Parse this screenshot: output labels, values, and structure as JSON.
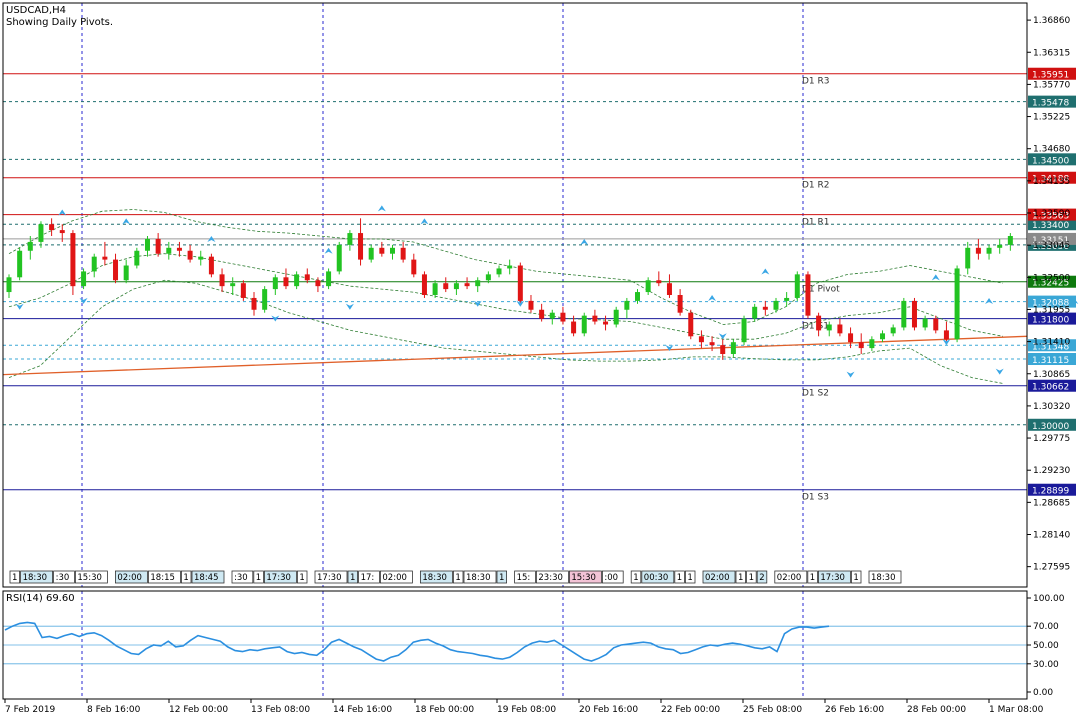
{
  "header": {
    "symbol": "USDCAD,H4",
    "subtitle": "Showing Daily Pivots."
  },
  "chart_data": {
    "type": "candlestick",
    "y_range": [
      1.2725,
      1.3715
    ],
    "price_ticks": [
      "1.36860",
      "1.36315",
      "1.35770",
      "1.35225",
      "1.34680",
      "1.34135",
      "1.33590",
      "1.33045",
      "1.32500",
      "1.31955",
      "1.31410",
      "1.30865",
      "1.30320",
      "1.29775",
      "1.29230",
      "1.28685",
      "1.28140",
      "1.27595"
    ],
    "pivot_levels": [
      {
        "name": "D1 R3",
        "value": 1.35951,
        "label": "1.35951",
        "color": "#d01010"
      },
      {
        "name": "D1 R2",
        "value": 1.34188,
        "label": "1.34188",
        "color": "#d01010"
      },
      {
        "name": "D1 R1",
        "value": 1.33563,
        "label": "1.33563",
        "color": "#d01010"
      },
      {
        "name": "D1 Pivot",
        "value": 1.32425,
        "label": "1.32425",
        "color": "#0e7a0e"
      },
      {
        "name": "D1 S1",
        "value": 1.318,
        "label": "1.31800",
        "color": "#1a1a9a"
      },
      {
        "name": "D1 S2",
        "value": 1.30662,
        "label": "1.30662",
        "color": "#1a1a9a"
      },
      {
        "name": "D1 S3",
        "value": 1.28899,
        "label": "1.28899",
        "color": "#1a1a9a"
      }
    ],
    "horizontal_levels": [
      {
        "value": 1.35478,
        "label": "1.35478",
        "color": "#1f6f6f"
      },
      {
        "value": 1.345,
        "label": "1.34500",
        "color": "#1f6f6f"
      },
      {
        "value": 1.334,
        "label": "1.33400",
        "color": "#1f6f6f"
      },
      {
        "value": 1.3305,
        "label": "1.33050",
        "color": "#1f6f6f"
      },
      {
        "value": 1.32088,
        "label": "1.32088",
        "color": "#3aa7d6"
      },
      {
        "value": 1.31348,
        "label": "1.31348",
        "color": "#3aa7d6"
      },
      {
        "value": 1.31115,
        "label": "1.31115",
        "color": "#3aa7d6"
      },
      {
        "value": 1.3,
        "label": "1.30000",
        "color": "#1f6f6f"
      }
    ],
    "current_price": {
      "value": 1.33151,
      "label": "1.33151"
    },
    "x_labels": [
      "7 Feb 2019",
      "8 Feb 16:00",
      "12 Feb 00:00",
      "13 Feb 08:00",
      "14 Feb 16:00",
      "18 Feb 00:00",
      "19 Feb 08:00",
      "20 Feb 16:00",
      "22 Feb 00:00",
      "25 Feb 08:00",
      "26 Feb 16:00",
      "28 Feb 00:00",
      "1 Mar 08:00"
    ],
    "candles": [
      [
        1.3225,
        1.3255,
        1.3215,
        1.325
      ],
      [
        1.325,
        1.33,
        1.3245,
        1.3295
      ],
      [
        1.3295,
        1.332,
        1.328,
        1.331
      ],
      [
        1.331,
        1.3345,
        1.33,
        1.334
      ],
      [
        1.334,
        1.335,
        1.332,
        1.333
      ],
      [
        1.333,
        1.334,
        1.331,
        1.3325
      ],
      [
        1.3325,
        1.333,
        1.322,
        1.3235
      ],
      [
        1.3235,
        1.3265,
        1.323,
        1.326
      ],
      [
        1.326,
        1.329,
        1.325,
        1.3285
      ],
      [
        1.3285,
        1.331,
        1.327,
        1.328
      ],
      [
        1.328,
        1.329,
        1.324,
        1.3245
      ],
      [
        1.3245,
        1.328,
        1.324,
        1.327
      ],
      [
        1.327,
        1.33,
        1.3265,
        1.3295
      ],
      [
        1.3295,
        1.332,
        1.3285,
        1.3315
      ],
      [
        1.3315,
        1.3325,
        1.3285,
        1.329
      ],
      [
        1.329,
        1.331,
        1.328,
        1.33
      ],
      [
        1.33,
        1.331,
        1.3285,
        1.3295
      ],
      [
        1.3295,
        1.3305,
        1.3275,
        1.328
      ],
      [
        1.328,
        1.3295,
        1.327,
        1.3285
      ],
      [
        1.3285,
        1.329,
        1.325,
        1.3255
      ],
      [
        1.3255,
        1.3265,
        1.3225,
        1.3235
      ],
      [
        1.3235,
        1.325,
        1.322,
        1.324
      ],
      [
        1.324,
        1.3245,
        1.321,
        1.3215
      ],
      [
        1.3215,
        1.3225,
        1.3185,
        1.3195
      ],
      [
        1.3195,
        1.3235,
        1.319,
        1.323
      ],
      [
        1.323,
        1.3255,
        1.322,
        1.325
      ],
      [
        1.325,
        1.3265,
        1.323,
        1.3235
      ],
      [
        1.3235,
        1.326,
        1.323,
        1.3255
      ],
      [
        1.3255,
        1.3265,
        1.324,
        1.3245
      ],
      [
        1.3245,
        1.325,
        1.3225,
        1.3235
      ],
      [
        1.3235,
        1.3265,
        1.323,
        1.326
      ],
      [
        1.326,
        1.331,
        1.3255,
        1.3305
      ],
      [
        1.3305,
        1.333,
        1.3295,
        1.3325
      ],
      [
        1.3325,
        1.335,
        1.327,
        1.328
      ],
      [
        1.328,
        1.3305,
        1.3275,
        1.33
      ],
      [
        1.33,
        1.331,
        1.3285,
        1.329
      ],
      [
        1.329,
        1.3305,
        1.328,
        1.33
      ],
      [
        1.33,
        1.331,
        1.3275,
        1.328
      ],
      [
        1.328,
        1.329,
        1.325,
        1.3255
      ],
      [
        1.3255,
        1.326,
        1.3215,
        1.322
      ],
      [
        1.322,
        1.3245,
        1.3215,
        1.324
      ],
      [
        1.324,
        1.325,
        1.3225,
        1.323
      ],
      [
        1.323,
        1.3245,
        1.322,
        1.324
      ],
      [
        1.324,
        1.325,
        1.323,
        1.3235
      ],
      [
        1.3235,
        1.325,
        1.3225,
        1.3245
      ],
      [
        1.3245,
        1.326,
        1.324,
        1.3255
      ],
      [
        1.3255,
        1.327,
        1.325,
        1.3265
      ],
      [
        1.3265,
        1.328,
        1.3255,
        1.327
      ],
      [
        1.327,
        1.3275,
        1.3205,
        1.321
      ],
      [
        1.321,
        1.322,
        1.319,
        1.3195
      ],
      [
        1.3195,
        1.3205,
        1.3175,
        1.318
      ],
      [
        1.318,
        1.3195,
        1.317,
        1.319
      ],
      [
        1.319,
        1.32,
        1.317,
        1.3175
      ],
      [
        1.3175,
        1.3185,
        1.315,
        1.3155
      ],
      [
        1.3155,
        1.319,
        1.315,
        1.3185
      ],
      [
        1.3185,
        1.3195,
        1.317,
        1.3175
      ],
      [
        1.3175,
        1.3185,
        1.316,
        1.317
      ],
      [
        1.317,
        1.32,
        1.3165,
        1.3195
      ],
      [
        1.3195,
        1.3215,
        1.318,
        1.321
      ],
      [
        1.321,
        1.323,
        1.3205,
        1.3225
      ],
      [
        1.3225,
        1.325,
        1.322,
        1.3245
      ],
      [
        1.3245,
        1.326,
        1.3235,
        1.324
      ],
      [
        1.324,
        1.3255,
        1.3215,
        1.322
      ],
      [
        1.322,
        1.323,
        1.3185,
        1.319
      ],
      [
        1.319,
        1.3195,
        1.3145,
        1.315
      ],
      [
        1.315,
        1.316,
        1.313,
        1.314
      ],
      [
        1.314,
        1.315,
        1.3125,
        1.3135
      ],
      [
        1.3135,
        1.3145,
        1.311,
        1.312
      ],
      [
        1.312,
        1.3145,
        1.3115,
        1.314
      ],
      [
        1.314,
        1.3185,
        1.3135,
        1.318
      ],
      [
        1.318,
        1.3205,
        1.3175,
        1.32
      ],
      [
        1.32,
        1.321,
        1.3185,
        1.3195
      ],
      [
        1.3195,
        1.3215,
        1.319,
        1.321
      ],
      [
        1.321,
        1.3225,
        1.32,
        1.3215
      ],
      [
        1.3215,
        1.326,
        1.321,
        1.3255
      ],
      [
        1.3255,
        1.326,
        1.318,
        1.3185
      ],
      [
        1.3185,
        1.319,
        1.315,
        1.316
      ],
      [
        1.316,
        1.3175,
        1.315,
        1.317
      ],
      [
        1.317,
        1.318,
        1.315,
        1.3155
      ],
      [
        1.3155,
        1.3165,
        1.313,
        1.314
      ],
      [
        1.314,
        1.3155,
        1.312,
        1.313
      ],
      [
        1.313,
        1.315,
        1.3125,
        1.3145
      ],
      [
        1.3145,
        1.316,
        1.314,
        1.3155
      ],
      [
        1.3155,
        1.317,
        1.315,
        1.3165
      ],
      [
        1.3165,
        1.3215,
        1.316,
        1.321
      ],
      [
        1.321,
        1.3215,
        1.316,
        1.3165
      ],
      [
        1.3165,
        1.3185,
        1.316,
        1.318
      ],
      [
        1.318,
        1.3185,
        1.3155,
        1.316
      ],
      [
        1.316,
        1.3175,
        1.314,
        1.3145
      ],
      [
        1.3145,
        1.327,
        1.314,
        1.3265
      ],
      [
        1.3265,
        1.331,
        1.3255,
        1.33
      ],
      [
        1.33,
        1.3315,
        1.328,
        1.329
      ],
      [
        1.329,
        1.3305,
        1.328,
        1.33
      ],
      [
        1.33,
        1.3315,
        1.329,
        1.3305
      ],
      [
        1.3305,
        1.3325,
        1.3295,
        1.332
      ]
    ],
    "trendline": {
      "start": 1.3085,
      "end": 1.315,
      "color": "#e0602a"
    },
    "envelope": {
      "upper": [
        1.329,
        1.332,
        1.3345,
        1.3362,
        1.3365,
        1.336,
        1.3345,
        1.3335,
        1.3328,
        1.3325,
        1.332,
        1.3315,
        1.3315,
        1.331,
        1.3295,
        1.328,
        1.327,
        1.326,
        1.3255,
        1.325,
        1.3245,
        1.3215,
        1.319,
        1.317,
        1.3175,
        1.32,
        1.324,
        1.3255,
        1.326,
        1.327,
        1.326,
        1.325,
        1.324
      ],
      "lower": [
        1.308,
        1.31,
        1.315,
        1.32,
        1.323,
        1.3245,
        1.324,
        1.3225,
        1.321,
        1.319,
        1.3175,
        1.316,
        1.315,
        1.314,
        1.313,
        1.3125,
        1.312,
        1.3115,
        1.311,
        1.3108,
        1.3108,
        1.311,
        1.3115,
        1.3115,
        1.3112,
        1.311,
        1.311,
        1.3115,
        1.3125,
        1.313,
        1.31,
        1.308,
        1.307
      ],
      "mid": [
        1.32,
        1.3215,
        1.324,
        1.327,
        1.3285,
        1.329,
        1.3285,
        1.3275,
        1.3265,
        1.3255,
        1.3245,
        1.3235,
        1.323,
        1.3225,
        1.3215,
        1.3205,
        1.3195,
        1.3188,
        1.318,
        1.3178,
        1.3175,
        1.3165,
        1.3155,
        1.3145,
        1.3145,
        1.3155,
        1.3175,
        1.3185,
        1.319,
        1.32,
        1.318,
        1.316,
        1.315
      ]
    },
    "fractals_up": [
      [
        5,
        1.3365
      ],
      [
        11,
        1.335
      ],
      [
        19,
        1.332
      ],
      [
        30,
        1.33
      ],
      [
        35,
        1.3372
      ],
      [
        39,
        1.335
      ],
      [
        54,
        1.3315
      ],
      [
        66,
        1.322
      ],
      [
        71,
        1.3265
      ],
      [
        87,
        1.3255
      ],
      [
        92,
        1.3215
      ],
      [
        100,
        1.3215
      ],
      [
        108,
        1.3345
      ],
      [
        112,
        1.333
      ]
    ],
    "fractals_down": [
      [
        1,
        1.3195
      ],
      [
        7,
        1.3205
      ],
      [
        25,
        1.3175
      ],
      [
        32,
        1.3195
      ],
      [
        44,
        1.32
      ],
      [
        48,
        1.32
      ],
      [
        62,
        1.3125
      ],
      [
        67,
        1.3145
      ],
      [
        79,
        1.308
      ],
      [
        88,
        1.3135
      ],
      [
        93,
        1.3085
      ],
      [
        104,
        1.31
      ],
      [
        106,
        1.308
      ],
      [
        110,
        1.3265
      ]
    ],
    "events": [
      "1",
      "18:30",
      ":30",
      "15:30",
      "02:00",
      "18:15",
      "1",
      "18:45",
      ":30",
      "1",
      "17:30",
      "1",
      "17:30",
      "1",
      "17:",
      "02:00",
      "18:30",
      "1",
      "18:30",
      "1",
      "15:",
      "23:30",
      "15:30",
      ":00",
      "1",
      "00:30",
      "1",
      "1",
      "02:00",
      "1",
      "1",
      "2",
      "02:00",
      "1",
      "17:30",
      "1",
      "18:30"
    ],
    "rsi": {
      "label": "RSI(14) 69.60",
      "levels": [
        "100.00",
        "70.00",
        "50.00",
        "30.00",
        "0.00"
      ],
      "values": [
        66,
        70,
        73,
        74,
        73,
        58,
        59,
        57,
        60,
        62,
        59,
        62,
        63,
        60,
        55,
        49,
        45,
        41,
        40,
        46,
        50,
        49,
        54,
        48,
        49,
        55,
        60,
        58,
        56,
        54,
        48,
        44,
        43,
        45,
        44,
        46,
        47,
        48,
        43,
        41,
        42,
        40,
        39,
        45,
        53,
        56,
        52,
        48,
        45,
        40,
        35,
        33,
        37,
        39,
        45,
        53,
        55,
        56,
        52,
        49,
        45,
        43,
        42,
        41,
        39,
        38,
        36,
        35,
        37,
        42,
        48,
        52,
        54,
        53,
        55,
        50,
        45,
        40,
        35,
        33,
        36,
        40,
        47,
        50,
        51,
        52,
        53,
        52,
        48,
        46,
        45,
        41,
        42,
        45,
        48,
        50,
        49,
        51,
        52,
        51,
        49,
        47,
        46,
        48,
        43,
        62,
        67,
        69,
        69,
        68,
        69,
        70
      ]
    }
  }
}
